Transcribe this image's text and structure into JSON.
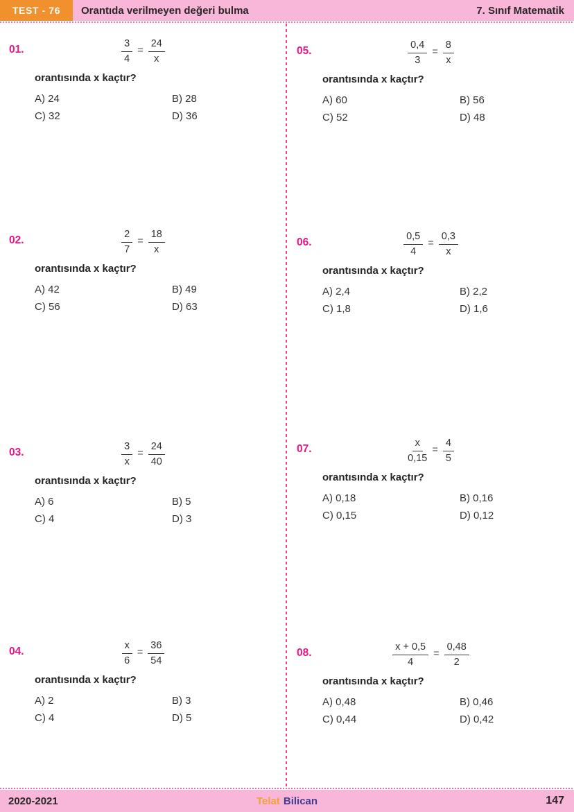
{
  "header": {
    "badge": "TEST - 76",
    "title": "Orantıda verilmeyen değeri bulma",
    "course": "7. Sınıf Matematik"
  },
  "footer": {
    "year": "2020-2021",
    "author_first": "Telat",
    "author_last": "Bilican",
    "page_number": "147"
  },
  "colors": {
    "accent_orange": "#F0912D",
    "banner_pink": "#F8B7D8",
    "magenta": "#E5158A",
    "text": "#262324",
    "author_blue": "#423E8F"
  },
  "questions": [
    {
      "number": "01.",
      "eq": {
        "lhs_num": "3",
        "lhs_den": "4",
        "sign": "=",
        "rhs_num": "24",
        "rhs_den": "x"
      },
      "prompt": "orantısında x kaçtır?",
      "options": [
        "A) 24",
        "B) 28",
        "C) 32",
        "D) 36"
      ]
    },
    {
      "number": "02.",
      "eq": {
        "lhs_num": "2",
        "lhs_den": "7",
        "sign": "=",
        "rhs_num": "18",
        "rhs_den": "x"
      },
      "prompt": "orantısında x kaçtır?",
      "options": [
        "A) 42",
        "B) 49",
        "C) 56",
        "D) 63"
      ]
    },
    {
      "number": "03.",
      "eq": {
        "lhs_num": "3",
        "lhs_den": "x",
        "sign": "=",
        "rhs_num": "24",
        "rhs_den": "40"
      },
      "prompt": "orantısında x kaçtır?",
      "options": [
        "A) 6",
        "B) 5",
        "C) 4",
        "D) 3"
      ]
    },
    {
      "number": "04.",
      "eq": {
        "lhs_num": "x",
        "lhs_den": "6",
        "sign": "=",
        "rhs_num": "36",
        "rhs_den": "54"
      },
      "prompt": "orantısında x kaçtır?",
      "options": [
        "A) 2",
        "B) 3",
        "C) 4",
        "D) 5"
      ]
    },
    {
      "number": "05.",
      "eq": {
        "lhs_num": "0,4",
        "lhs_den": "3",
        "sign": "=",
        "rhs_num": "8",
        "rhs_den": "x"
      },
      "prompt": "orantısında x kaçtır?",
      "options": [
        "A) 60",
        "B) 56",
        "C) 52",
        "D) 48"
      ]
    },
    {
      "number": "06.",
      "eq": {
        "lhs_num": "0,5",
        "lhs_den": "4",
        "sign": "=",
        "rhs_num": "0,3",
        "rhs_den": "x"
      },
      "prompt": "orantısında x kaçtır?",
      "options": [
        "A) 2,4",
        "B) 2,2",
        "C) 1,8",
        "D) 1,6"
      ]
    },
    {
      "number": "07.",
      "eq": {
        "lhs_num": "x",
        "lhs_den": "0,15",
        "sign": "=",
        "rhs_num": "4",
        "rhs_den": "5"
      },
      "prompt": "orantısında x kaçtır?",
      "options": [
        "A) 0,18",
        "B) 0,16",
        "C) 0,15",
        "D) 0,12"
      ]
    },
    {
      "number": "08.",
      "eq": {
        "lhs_num": "x + 0,5",
        "lhs_den": "4",
        "sign": "=",
        "rhs_num": "0,48",
        "rhs_den": "2"
      },
      "prompt": "orantısında x kaçtır?",
      "options": [
        "A) 0,48",
        "B) 0,46",
        "C) 0,44",
        "D) 0,42"
      ]
    }
  ]
}
